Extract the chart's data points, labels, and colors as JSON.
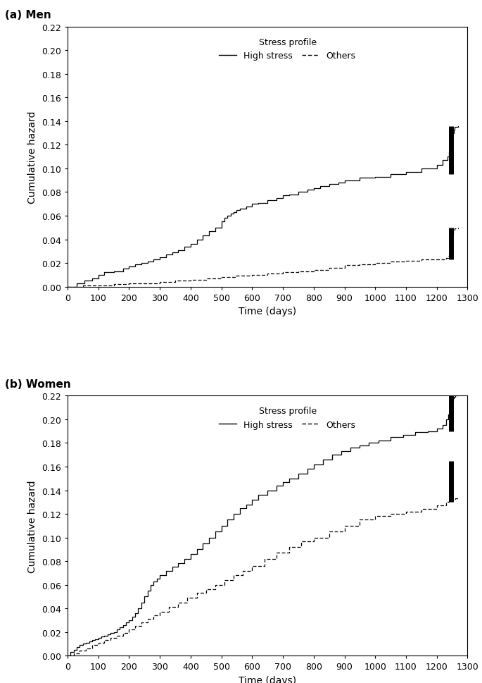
{
  "panel_a_label": "(a) Men",
  "panel_b_label": "(b) Women",
  "xlabel": "Time (days)",
  "ylabel": "Cumulative hazard",
  "legend_title": "Stress profile",
  "legend_high": "High stress",
  "legend_others": "Others",
  "xlim": [
    0,
    1300
  ],
  "ylim": [
    0,
    0.22
  ],
  "xticks": [
    0,
    100,
    200,
    300,
    400,
    500,
    600,
    700,
    800,
    900,
    1000,
    1100,
    1200,
    1300
  ],
  "yticks": [
    0.0,
    0.02,
    0.04,
    0.06,
    0.08,
    0.1,
    0.12,
    0.14,
    0.16,
    0.18,
    0.2,
    0.22
  ],
  "men_high_x": [
    0,
    30,
    55,
    80,
    100,
    120,
    150,
    180,
    200,
    220,
    240,
    260,
    280,
    300,
    320,
    340,
    360,
    380,
    400,
    420,
    440,
    460,
    480,
    500,
    510,
    520,
    530,
    540,
    550,
    560,
    580,
    600,
    620,
    650,
    680,
    700,
    720,
    750,
    780,
    800,
    820,
    850,
    880,
    900,
    950,
    1000,
    1050,
    1100,
    1150,
    1200,
    1220,
    1235,
    1240,
    1243,
    1246,
    1249,
    1252,
    1255,
    1258,
    1270
  ],
  "men_high_y": [
    0,
    0.003,
    0.005,
    0.007,
    0.01,
    0.012,
    0.013,
    0.015,
    0.017,
    0.019,
    0.02,
    0.021,
    0.023,
    0.025,
    0.027,
    0.029,
    0.031,
    0.034,
    0.036,
    0.04,
    0.043,
    0.047,
    0.05,
    0.055,
    0.058,
    0.06,
    0.062,
    0.063,
    0.065,
    0.066,
    0.068,
    0.07,
    0.071,
    0.073,
    0.075,
    0.077,
    0.078,
    0.08,
    0.082,
    0.083,
    0.085,
    0.087,
    0.088,
    0.09,
    0.092,
    0.093,
    0.095,
    0.097,
    0.1,
    0.103,
    0.107,
    0.11,
    0.114,
    0.118,
    0.122,
    0.126,
    0.13,
    0.133,
    0.135,
    0.136
  ],
  "men_others_x": [
    0,
    50,
    100,
    150,
    200,
    250,
    300,
    350,
    400,
    450,
    500,
    550,
    600,
    650,
    700,
    750,
    800,
    850,
    900,
    950,
    1000,
    1050,
    1100,
    1150,
    1200,
    1230,
    1238,
    1242,
    1246,
    1250,
    1254,
    1258,
    1270
  ],
  "men_others_y": [
    0,
    0.001,
    0.001,
    0.002,
    0.003,
    0.003,
    0.004,
    0.005,
    0.006,
    0.007,
    0.008,
    0.009,
    0.01,
    0.011,
    0.012,
    0.013,
    0.014,
    0.016,
    0.018,
    0.019,
    0.02,
    0.021,
    0.022,
    0.023,
    0.023,
    0.024,
    0.026,
    0.03,
    0.038,
    0.044,
    0.047,
    0.049,
    0.05
  ],
  "women_high_x": [
    0,
    10,
    20,
    30,
    40,
    50,
    60,
    70,
    80,
    90,
    100,
    110,
    120,
    130,
    140,
    150,
    160,
    170,
    180,
    190,
    200,
    210,
    220,
    230,
    240,
    250,
    260,
    270,
    280,
    290,
    300,
    320,
    340,
    360,
    380,
    400,
    420,
    440,
    460,
    480,
    500,
    520,
    540,
    560,
    580,
    600,
    620,
    650,
    680,
    700,
    720,
    750,
    780,
    800,
    830,
    860,
    890,
    920,
    950,
    980,
    1010,
    1050,
    1090,
    1130,
    1170,
    1200,
    1220,
    1230,
    1237,
    1241,
    1244,
    1247,
    1250,
    1253,
    1256,
    1259,
    1270
  ],
  "women_high_y": [
    0,
    0.003,
    0.005,
    0.007,
    0.009,
    0.01,
    0.011,
    0.012,
    0.013,
    0.014,
    0.015,
    0.016,
    0.017,
    0.018,
    0.019,
    0.02,
    0.022,
    0.024,
    0.026,
    0.028,
    0.03,
    0.033,
    0.036,
    0.04,
    0.045,
    0.05,
    0.055,
    0.06,
    0.063,
    0.065,
    0.068,
    0.072,
    0.075,
    0.078,
    0.082,
    0.086,
    0.09,
    0.095,
    0.1,
    0.105,
    0.11,
    0.115,
    0.12,
    0.125,
    0.128,
    0.132,
    0.136,
    0.14,
    0.144,
    0.147,
    0.15,
    0.154,
    0.158,
    0.162,
    0.166,
    0.17,
    0.173,
    0.176,
    0.178,
    0.18,
    0.182,
    0.185,
    0.187,
    0.189,
    0.19,
    0.192,
    0.195,
    0.2,
    0.204,
    0.207,
    0.21,
    0.213,
    0.216,
    0.218,
    0.219,
    0.22,
    0.221
  ],
  "women_others_x": [
    0,
    20,
    40,
    60,
    80,
    100,
    120,
    140,
    160,
    180,
    200,
    220,
    240,
    260,
    280,
    300,
    330,
    360,
    390,
    420,
    450,
    480,
    510,
    540,
    570,
    600,
    640,
    680,
    720,
    760,
    800,
    850,
    900,
    950,
    1000,
    1050,
    1100,
    1150,
    1200,
    1230,
    1240,
    1250,
    1260,
    1270
  ],
  "women_others_y": [
    0,
    0.002,
    0.004,
    0.006,
    0.009,
    0.011,
    0.013,
    0.015,
    0.017,
    0.019,
    0.022,
    0.025,
    0.028,
    0.031,
    0.034,
    0.037,
    0.041,
    0.045,
    0.049,
    0.053,
    0.056,
    0.06,
    0.064,
    0.068,
    0.072,
    0.076,
    0.082,
    0.087,
    0.092,
    0.097,
    0.1,
    0.105,
    0.11,
    0.115,
    0.118,
    0.12,
    0.122,
    0.124,
    0.127,
    0.13,
    0.131,
    0.132,
    0.133,
    0.133
  ],
  "line_color": "#000000",
  "background_color": "#ffffff",
  "font_size": 9,
  "label_font_size": 10,
  "panel_font_size": 11
}
